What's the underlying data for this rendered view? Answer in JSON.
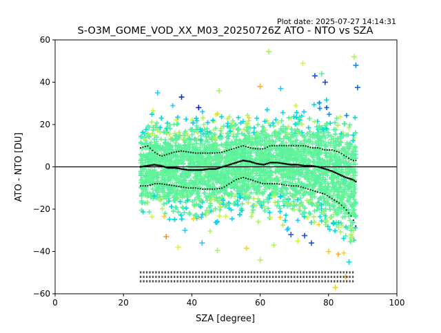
{
  "plot_date": "Plot date: 2025-07-27 14:14:31",
  "chart_data": {
    "type": "scatter",
    "title": "S-O3M_GOME_VOD_XX_M03_20250726Z ATO - NTO vs SZA",
    "xlabel": "SZA [degree]",
    "ylabel": "ATO - NTO [DU]",
    "xlim": [
      0,
      100
    ],
    "ylim": [
      -60,
      60
    ],
    "xticks": [
      0,
      20,
      40,
      60,
      80,
      100
    ],
    "yticks": [
      -60,
      -40,
      -20,
      0,
      20,
      40,
      60
    ],
    "grid": false,
    "legend": "none",
    "reference_line_y": 0,
    "scatter_envelope": {
      "sza": [
        25,
        30,
        35,
        40,
        45,
        50,
        55,
        60,
        65,
        70,
        75,
        80,
        85,
        88
      ],
      "upper": [
        28,
        30,
        30,
        30,
        30,
        31,
        31,
        32,
        33,
        33,
        34,
        35,
        35,
        30
      ],
      "lower": [
        -30,
        -32,
        -32,
        -32,
        -32,
        -31,
        -31,
        -31,
        -32,
        -33,
        -34,
        -40,
        -55,
        -55
      ]
    },
    "series": [
      {
        "name": "",
        "role": "mean",
        "x": [
          25,
          27,
          29,
          31,
          33,
          35,
          37,
          39,
          41,
          43,
          45,
          47,
          49,
          51,
          53,
          55,
          57,
          59,
          61,
          63,
          65,
          67,
          69,
          71,
          73,
          75,
          77,
          79,
          81,
          83,
          85,
          87,
          88
        ],
        "y": [
          0,
          0.5,
          1,
          0.5,
          -0.5,
          -0.5,
          -1,
          -1.5,
          -1.5,
          -1.5,
          -1,
          -1,
          0,
          1,
          2,
          3,
          2.5,
          1.5,
          1,
          2,
          2,
          1.5,
          1,
          1,
          0.5,
          0.5,
          0,
          -1,
          -2,
          -3.5,
          -5,
          -6,
          -7
        ]
      },
      {
        "name": "",
        "role": "mean_plus_std",
        "x": [
          25,
          27,
          29,
          31,
          33,
          35,
          37,
          39,
          41,
          43,
          45,
          47,
          49,
          51,
          53,
          55,
          57,
          59,
          61,
          63,
          65,
          67,
          69,
          71,
          73,
          75,
          77,
          79,
          81,
          83,
          85,
          87,
          88
        ],
        "y": [
          9,
          10,
          7,
          5,
          6,
          7,
          7.5,
          7,
          6.5,
          6.5,
          6.5,
          6.5,
          7,
          8,
          9,
          10,
          9,
          8.5,
          8.5,
          10,
          10,
          10,
          10,
          10,
          10,
          9,
          9,
          8,
          8,
          7,
          5,
          3,
          3
        ]
      },
      {
        "name": "",
        "role": "mean_minus_std",
        "x": [
          25,
          27,
          29,
          31,
          33,
          35,
          37,
          39,
          41,
          43,
          45,
          47,
          49,
          51,
          53,
          55,
          57,
          59,
          61,
          63,
          65,
          67,
          69,
          71,
          73,
          75,
          77,
          79,
          81,
          83,
          85,
          87,
          88
        ],
        "y": [
          -9,
          -9,
          -8,
          -8,
          -8.5,
          -9,
          -9.5,
          -10,
          -10,
          -10.5,
          -10.5,
          -10.5,
          -10,
          -8,
          -6,
          -5,
          -6,
          -7,
          -8,
          -8,
          -8,
          -8.5,
          -9,
          -9,
          -10,
          -11,
          -12,
          -13,
          -15,
          -17,
          -20,
          -24,
          -28
        ]
      }
    ],
    "outlier_points": [
      {
        "x": 62.5,
        "y": 54.5,
        "color": "#aef45a"
      },
      {
        "x": 72.5,
        "y": 49,
        "color": "#cbfb3a"
      },
      {
        "x": 87.5,
        "y": 52,
        "color": "#aef45a"
      },
      {
        "x": 88,
        "y": 48,
        "color": "#0a8cf0"
      },
      {
        "x": 76,
        "y": 43,
        "color": "#0a56e6"
      },
      {
        "x": 79,
        "y": 40,
        "color": "#1f3adc"
      },
      {
        "x": 88.5,
        "y": 37.5,
        "color": "#0c64ff"
      },
      {
        "x": 37,
        "y": 33,
        "color": "#0a32dc"
      },
      {
        "x": 30,
        "y": 35,
        "color": "#28c8ff"
      },
      {
        "x": 42,
        "y": 28,
        "color": "#0020d8"
      },
      {
        "x": 60,
        "y": 38,
        "color": "#ffb000"
      },
      {
        "x": 48,
        "y": 36,
        "color": "#aef45a"
      },
      {
        "x": 56,
        "y": -38.5,
        "color": "#ffd21a"
      },
      {
        "x": 60,
        "y": -44,
        "color": "#aef45a"
      },
      {
        "x": 47.5,
        "y": -39.5,
        "color": "#aef45a"
      },
      {
        "x": 32.5,
        "y": -33,
        "color": "#ff8c28"
      },
      {
        "x": 43,
        "y": -36,
        "color": "#28c8ff"
      },
      {
        "x": 75,
        "y": -36,
        "color": "#0a56e6"
      },
      {
        "x": 69,
        "y": -32,
        "color": "#3c50e6"
      },
      {
        "x": 73,
        "y": -32.5,
        "color": "#1e46dc"
      },
      {
        "x": 86,
        "y": -45,
        "color": "#00dcdc"
      },
      {
        "x": 80,
        "y": -40,
        "color": "#ffc81a"
      },
      {
        "x": 85,
        "y": -52,
        "color": "#ffb000"
      },
      {
        "x": 82,
        "y": -57,
        "color": "#ffd21a"
      },
      {
        "x": 36,
        "y": -38,
        "color": "#cbfb3a"
      },
      {
        "x": 64,
        "y": -37,
        "color": "#aef45a"
      },
      {
        "x": 71,
        "y": -35,
        "color": "#cbfb3a"
      },
      {
        "x": 38,
        "y": -30,
        "color": "#28c8ff"
      },
      {
        "x": 66,
        "y": 37,
        "color": "#28c8ff"
      },
      {
        "x": 78,
        "y": 44,
        "color": "#5af0a0"
      }
    ],
    "bin_count_labels_y": -50,
    "colors": {
      "mean_line": "#000000",
      "zero_line": "#000000",
      "palette": [
        "#5af0a0",
        "#66f596",
        "#00dcdc",
        "#28c8ff",
        "#0a8cf0",
        "#0a56e6",
        "#aef45a",
        "#cbfb3a",
        "#ffd21a",
        "#ffb000"
      ]
    }
  }
}
